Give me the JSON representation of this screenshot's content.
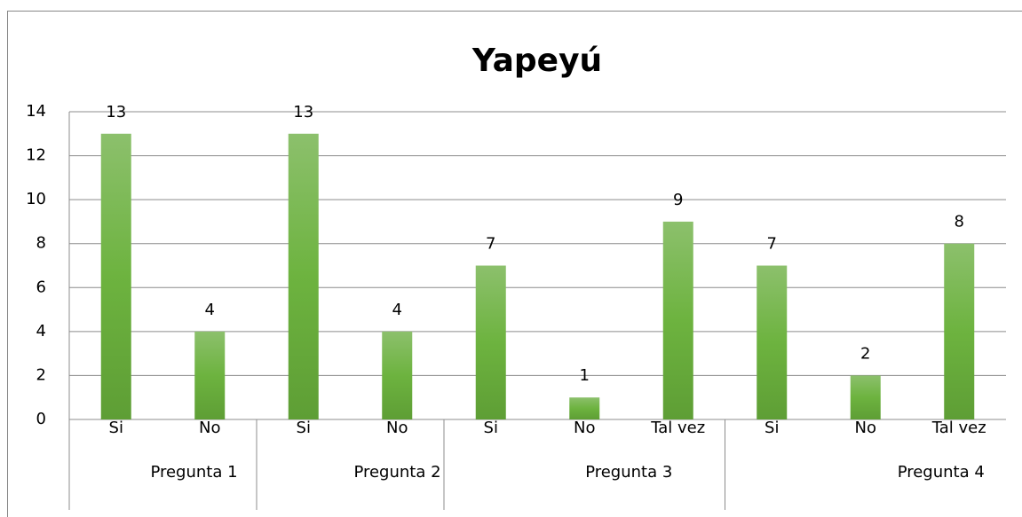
{
  "chart_data": {
    "type": "bar",
    "title": "Yapeyú",
    "groups": [
      {
        "name": "Pregunta 1",
        "categories": [
          "Si",
          "No"
        ]
      },
      {
        "name": "Pregunta 2",
        "categories": [
          "Si",
          "No"
        ]
      },
      {
        "name": "Pregunta 3",
        "categories": [
          "Si",
          "No",
          "Tal vez"
        ]
      },
      {
        "name": "Pregunta 4",
        "categories": [
          "Si",
          "No",
          "Tal vez"
        ]
      }
    ],
    "values": [
      13,
      4,
      13,
      4,
      7,
      1,
      9,
      7,
      2,
      8
    ],
    "color": "#6aad3d",
    "ylim": [
      0,
      14
    ],
    "yticks": [
      0,
      2,
      4,
      6,
      8,
      10,
      12,
      14
    ],
    "grid": true
  }
}
